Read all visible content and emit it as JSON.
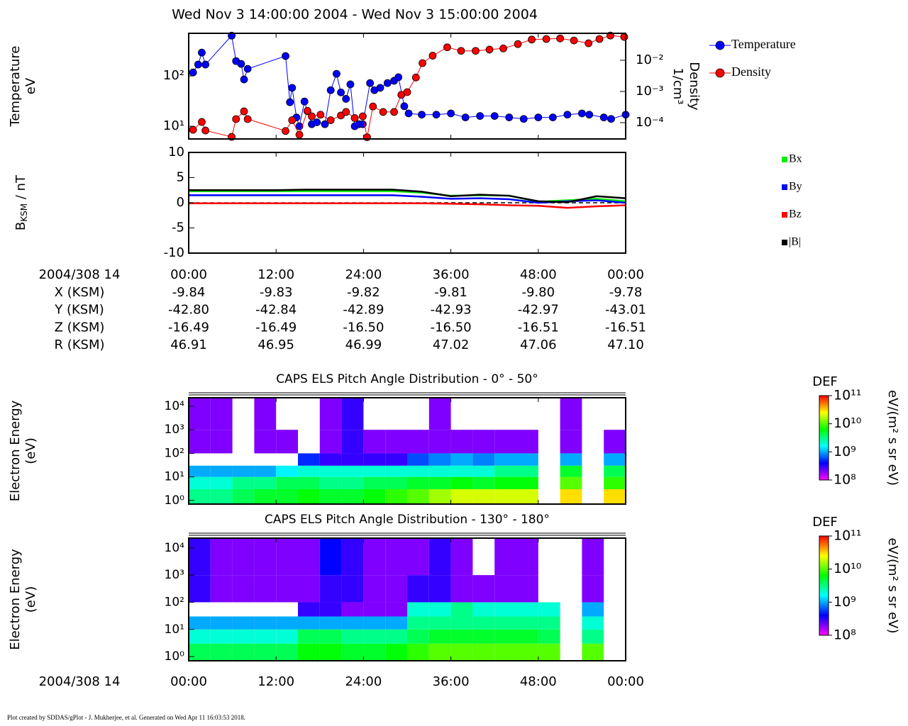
{
  "title": "Wed Nov 3 14:00:00 2004 - Wed Nov 3 15:00:00 2004",
  "footer": "Plot created by SDDAS/gPlot - J. Mukherjee, et al.  Generated on Wed Apr 11 16:03:53 2018.",
  "chart_data": [
    {
      "type": "line",
      "marker": "o",
      "legend": "right",
      "ylabel": [
        "Temperature",
        "eV"
      ],
      "y2label": [
        "Density",
        "1/cm³"
      ],
      "xlim": [
        0,
        60
      ],
      "xticks": [
        0,
        12,
        24,
        36,
        48,
        60
      ],
      "ylog": true,
      "ylim": [
        5.6,
        700
      ],
      "yticks": [
        {
          "value": 10,
          "label": "10¹"
        },
        {
          "value": 100,
          "label": "10²"
        }
      ],
      "y2log": true,
      "y2lim": [
        3e-05,
        0.073
      ],
      "y2ticks": [
        {
          "value": 0.0001,
          "label": "10⁻⁴"
        },
        {
          "value": 0.001,
          "label": "10⁻³"
        },
        {
          "value": 0.01,
          "label": "10⁻²"
        }
      ],
      "series": [
        {
          "name": "Temperature",
          "color": "#0000ff",
          "axis": "y",
          "x": [
            0.6,
            1.3,
            1.8,
            2.3,
            5.9,
            6.5,
            7.2,
            7.6,
            8.1,
            13.3,
            13.9,
            14.2,
            14.8,
            15.2,
            15.9,
            16.3,
            16.9,
            17.6,
            18.7,
            19.5,
            20.3,
            20.9,
            21.6,
            22.2,
            22.8,
            23.4,
            23.9,
            24.9,
            25.5,
            26.3,
            27.3,
            28.2,
            28.8,
            29.6,
            30.2,
            32,
            34,
            36,
            38,
            40,
            42,
            44,
            46,
            48,
            50,
            52,
            54,
            55,
            57,
            58,
            60
          ],
          "values": [
            117,
            168,
            290,
            168,
            630,
            197,
            173,
            85,
            138,
            248,
            30,
            58,
            15,
            10,
            31,
            20,
            11,
            12,
            11,
            52,
            110,
            47,
            35,
            68,
            10,
            11,
            11,
            72,
            52,
            58,
            72,
            80,
            94,
            25,
            18,
            17,
            17,
            18,
            15,
            16,
            16,
            15,
            14,
            15,
            15,
            17,
            18,
            17,
            15,
            14,
            17
          ]
        },
        {
          "name": "Density",
          "color": "#ff0000",
          "axis": "y2",
          "x": [
            0.6,
            1.8,
            2.3,
            5.9,
            6.5,
            7.6,
            8.1,
            13.3,
            14.2,
            15.2,
            16.3,
            16.9,
            18.1,
            19.5,
            20.9,
            21.6,
            22.8,
            23.9,
            24.5,
            25.3,
            26.7,
            28.2,
            29.2,
            30.0,
            31.2,
            32.1,
            33.5,
            35.5,
            37.4,
            39.4,
            41.3,
            43.2,
            45.2,
            47.1,
            49.1,
            51.0,
            52.9,
            54.9,
            56.4,
            57.9,
            59.8
          ],
          "values": [
            5.9e-05,
            0.000105,
            5.6e-05,
            3.5e-05,
            0.00013,
            0.00023,
            0.00013,
            5.4e-05,
            0.00012,
            4.1e-05,
            0.00024,
            0.00016,
            0.00018,
            0.00012,
            0.00017,
            0.00022,
            0.00014,
            0.00016,
            3.4e-05,
            0.00033,
            0.00022,
            0.00022,
            0.00078,
            0.00095,
            0.0028,
            0.0081,
            0.014,
            0.026,
            0.02,
            0.02,
            0.022,
            0.024,
            0.033,
            0.046,
            0.048,
            0.05,
            0.043,
            0.035,
            0.048,
            0.062,
            0.056
          ]
        }
      ]
    },
    {
      "type": "line",
      "legend": "right",
      "ylabel": [
        "B",
        "KSM",
        " / nT"
      ],
      "xlabel": "2004/308 14",
      "xlim": [
        0,
        60
      ],
      "xticks": [
        {
          "value": 0,
          "label": "00:00"
        },
        {
          "value": 12,
          "label": "12:00"
        },
        {
          "value": 24,
          "label": "24:00"
        },
        {
          "value": 36,
          "label": "36:00"
        },
        {
          "value": 48,
          "label": "48:00"
        },
        {
          "value": 60,
          "label": "00:00"
        }
      ],
      "ylim": [
        -10,
        10
      ],
      "yticks": [
        -10,
        -5,
        0,
        5,
        10
      ],
      "x": [
        0,
        4,
        8,
        12,
        16,
        20,
        24,
        28,
        32,
        36,
        40,
        44,
        48,
        52,
        56,
        60
      ],
      "series": [
        {
          "name": "Bx",
          "color": "#00ee00",
          "values": [
            2.3,
            2.3,
            2.3,
            2.3,
            2.3,
            2.3,
            2.3,
            2.3,
            2.0,
            1.4,
            1.5,
            1.4,
            0.2,
            0.5,
            0.8,
            0.3
          ]
        },
        {
          "name": "By",
          "color": "#0000ff",
          "values": [
            1.5,
            1.5,
            1.5,
            1.5,
            1.5,
            1.5,
            1.5,
            1.5,
            1.2,
            0.8,
            0.9,
            0.7,
            0.0,
            0.3,
            0.5,
            0.0
          ]
        },
        {
          "name": "Bz",
          "color": "#ff0000",
          "values": [
            -0.1,
            -0.1,
            -0.1,
            -0.1,
            -0.1,
            -0.1,
            -0.1,
            -0.1,
            -0.1,
            -0.2,
            -0.3,
            -0.5,
            -0.6,
            -1.0,
            -0.7,
            -0.5
          ]
        },
        {
          "name": "|B|",
          "color": "#000000",
          "values": [
            2.5,
            2.5,
            2.5,
            2.5,
            2.6,
            2.6,
            2.6,
            2.6,
            2.2,
            1.3,
            1.6,
            1.4,
            0.3,
            0.1,
            1.3,
            0.9
          ]
        }
      ]
    },
    {
      "type": "heatmap",
      "title": "CAPS ELS Pitch Angle Distribution - 0° - 50°",
      "ylabel": [
        "Electron Energy",
        "(eV)"
      ],
      "xlim": [
        0,
        60
      ],
      "xticks": [
        0,
        12,
        24,
        36,
        48,
        60
      ],
      "ylog": true,
      "ylim": [
        0.7,
        23000
      ],
      "yticks": [
        {
          "value": 1,
          "label": "10⁰"
        },
        {
          "value": 10,
          "label": "10¹"
        },
        {
          "value": 100,
          "label": "10²"
        },
        {
          "value": 1000,
          "label": "10³"
        },
        {
          "value": 10000,
          "label": "10⁴"
        }
      ],
      "x": [
        0,
        3,
        6,
        9,
        12,
        15,
        18,
        21,
        24,
        27,
        30,
        33,
        36,
        39,
        42,
        45,
        48,
        51,
        54,
        57,
        60
      ],
      "y": [
        0.7,
        3,
        10,
        30,
        100,
        1000,
        23000
      ],
      "values": [
        [
          3000000000.0,
          3000000000.0,
          4000000000.0,
          5000000000.0,
          5000000000.0,
          6000000000.0,
          5000000000.0,
          5000000000.0,
          6000000000.0,
          8000000000.0,
          10000000000.0,
          15000000000.0,
          20000000000.0,
          20000000000.0,
          20000000000.0,
          20000000000.0,
          null,
          30000000000.0,
          null,
          30000000000.0
        ],
        [
          2000000000.0,
          2000000000.0,
          3000000000.0,
          3000000000.0,
          4000000000.0,
          4000000000.0,
          3000000000.0,
          3000000000.0,
          4000000000.0,
          4000000000.0,
          5000000000.0,
          5000000000.0,
          6000000000.0,
          5000000000.0,
          6000000000.0,
          6000000000.0,
          null,
          10000000000.0,
          null,
          8000000000.0
        ],
        [
          1000000000.0,
          1000000000.0,
          1000000000.0,
          1000000000.0,
          1500000000.0,
          2000000000.0,
          2000000000.0,
          2000000000.0,
          2000000000.0,
          2000000000.0,
          2000000000.0,
          2000000000.0,
          2000000000.0,
          2000000000.0,
          3000000000.0,
          3000000000.0,
          null,
          5000000000.0,
          null,
          4000000000.0
        ],
        [
          null,
          null,
          null,
          null,
          null,
          500000000.0,
          300000000.0,
          300000000.0,
          300000000.0,
          300000000.0,
          600000000.0,
          800000000.0,
          1000000000.0,
          800000000.0,
          1000000000.0,
          1000000000.0,
          null,
          1000000000.0,
          null,
          1000000000.0
        ],
        [
          200000000.0,
          200000000.0,
          null,
          200000000.0,
          200000000.0,
          null,
          200000000.0,
          300000000.0,
          200000000.0,
          200000000.0,
          200000000.0,
          200000000.0,
          200000000.0,
          200000000.0,
          200000000.0,
          200000000.0,
          null,
          200000000.0,
          null,
          200000000.0
        ],
        [
          200000000.0,
          200000000.0,
          null,
          200000000.0,
          null,
          null,
          200000000.0,
          300000000.0,
          null,
          null,
          null,
          200000000.0,
          null,
          null,
          null,
          null,
          null,
          200000000.0,
          null,
          null
        ]
      ],
      "colorbar": {
        "label": "DEF",
        "unit": "eV/(m² s sr eV)",
        "zlog": true,
        "zlim": [
          100000000.0,
          100000000000.0
        ],
        "zticks": [
          {
            "value": 100000000.0,
            "label": "10⁸"
          },
          {
            "value": 1000000000.0,
            "label": "10⁹"
          },
          {
            "value": 10000000000.0,
            "label": "10¹⁰"
          },
          {
            "value": 100000000000.0,
            "label": "10¹¹"
          }
        ]
      }
    },
    {
      "type": "heatmap",
      "title": "CAPS ELS Pitch Angle Distribution - 130° - 180°",
      "ylabel": [
        "Electron Energy",
        "(eV)"
      ],
      "xlabel": "2004/308 14",
      "xlim": [
        0,
        60
      ],
      "xticks": [
        {
          "value": 0,
          "label": "00:00"
        },
        {
          "value": 12,
          "label": "12:00"
        },
        {
          "value": 24,
          "label": "24:00"
        },
        {
          "value": 36,
          "label": "36:00"
        },
        {
          "value": 48,
          "label": "48:00"
        },
        {
          "value": 60,
          "label": "00:00"
        }
      ],
      "ylog": true,
      "ylim": [
        0.7,
        23000
      ],
      "yticks": [
        {
          "value": 1,
          "label": "10⁰"
        },
        {
          "value": 10,
          "label": "10¹"
        },
        {
          "value": 100,
          "label": "10²"
        },
        {
          "value": 1000,
          "label": "10³"
        },
        {
          "value": 10000,
          "label": "10⁴"
        }
      ],
      "x": [
        0,
        3,
        6,
        9,
        12,
        15,
        18,
        21,
        24,
        27,
        30,
        33,
        36,
        39,
        42,
        45,
        48,
        51,
        54,
        57,
        60
      ],
      "y": [
        0.7,
        3,
        10,
        30,
        100,
        1000,
        23000
      ],
      "values": [
        [
          4000000000.0,
          4000000000.0,
          4000000000.0,
          4000000000.0,
          4000000000.0,
          6000000000.0,
          6000000000.0,
          5000000000.0,
          5000000000.0,
          6000000000.0,
          8000000000.0,
          10000000000.0,
          10000000000.0,
          10000000000.0,
          10000000000.0,
          10000000000.0,
          10000000000.0,
          null,
          10000000000.0,
          null
        ],
        [
          2000000000.0,
          2000000000.0,
          2000000000.0,
          2000000000.0,
          2000000000.0,
          4000000000.0,
          4000000000.0,
          3000000000.0,
          3000000000.0,
          3000000000.0,
          4000000000.0,
          5000000000.0,
          5000000000.0,
          5000000000.0,
          5000000000.0,
          5000000000.0,
          4000000000.0,
          null,
          3000000000.0,
          null
        ],
        [
          1000000000.0,
          1000000000.0,
          1000000000.0,
          1000000000.0,
          1000000000.0,
          1000000000.0,
          1000000000.0,
          1000000000.0,
          1000000000.0,
          1000000000.0,
          3000000000.0,
          3000000000.0,
          3000000000.0,
          3000000000.0,
          3000000000.0,
          3000000000.0,
          3000000000.0,
          null,
          2000000000.0,
          null
        ],
        [
          null,
          null,
          null,
          null,
          null,
          300000000.0,
          300000000.0,
          200000000.0,
          200000000.0,
          200000000.0,
          2000000000.0,
          2000000000.0,
          3000000000.0,
          2000000000.0,
          2000000000.0,
          2000000000.0,
          2000000000.0,
          null,
          1000000000.0,
          null
        ],
        [
          300000000.0,
          200000000.0,
          200000000.0,
          200000000.0,
          200000000.0,
          200000000.0,
          300000000.0,
          300000000.0,
          200000000.0,
          200000000.0,
          300000000.0,
          300000000.0,
          200000000.0,
          200000000.0,
          200000000.0,
          200000000.0,
          null,
          null,
          200000000.0,
          null
        ],
        [
          300000000.0,
          200000000.0,
          200000000.0,
          200000000.0,
          200000000.0,
          200000000.0,
          400000000.0,
          300000000.0,
          200000000.0,
          200000000.0,
          200000000.0,
          300000000.0,
          200000000.0,
          null,
          200000000.0,
          200000000.0,
          null,
          null,
          200000000.0,
          null
        ]
      ],
      "colorbar": {
        "label": "DEF",
        "unit": "eV/(m² s sr eV)",
        "zlog": true,
        "zlim": [
          100000000.0,
          100000000000.0
        ],
        "zticks": [
          {
            "value": 100000000.0,
            "label": "10⁸"
          },
          {
            "value": 1000000000.0,
            "label": "10⁹"
          },
          {
            "value": 10000000000.0,
            "label": "10¹⁰"
          },
          {
            "value": 100000000000.0,
            "label": "10¹¹"
          }
        ]
      }
    }
  ],
  "ephemeris": {
    "rows": [
      {
        "name": "X (KSM)",
        "values": [
          "-9.84",
          "-9.83",
          "-9.82",
          "-9.81",
          "-9.80",
          "-9.78"
        ]
      },
      {
        "name": "Y (KSM)",
        "values": [
          "-42.80",
          "-42.84",
          "-42.89",
          "-42.93",
          "-42.97",
          "-43.01"
        ]
      },
      {
        "name": "Z (KSM)",
        "values": [
          "-16.49",
          "-16.49",
          "-16.50",
          "-16.50",
          "-16.51",
          "-16.51"
        ]
      },
      {
        "name": "R (KSM)",
        "values": [
          "46.91",
          "46.95",
          "46.99",
          "47.02",
          "47.06",
          "47.10"
        ]
      }
    ]
  }
}
